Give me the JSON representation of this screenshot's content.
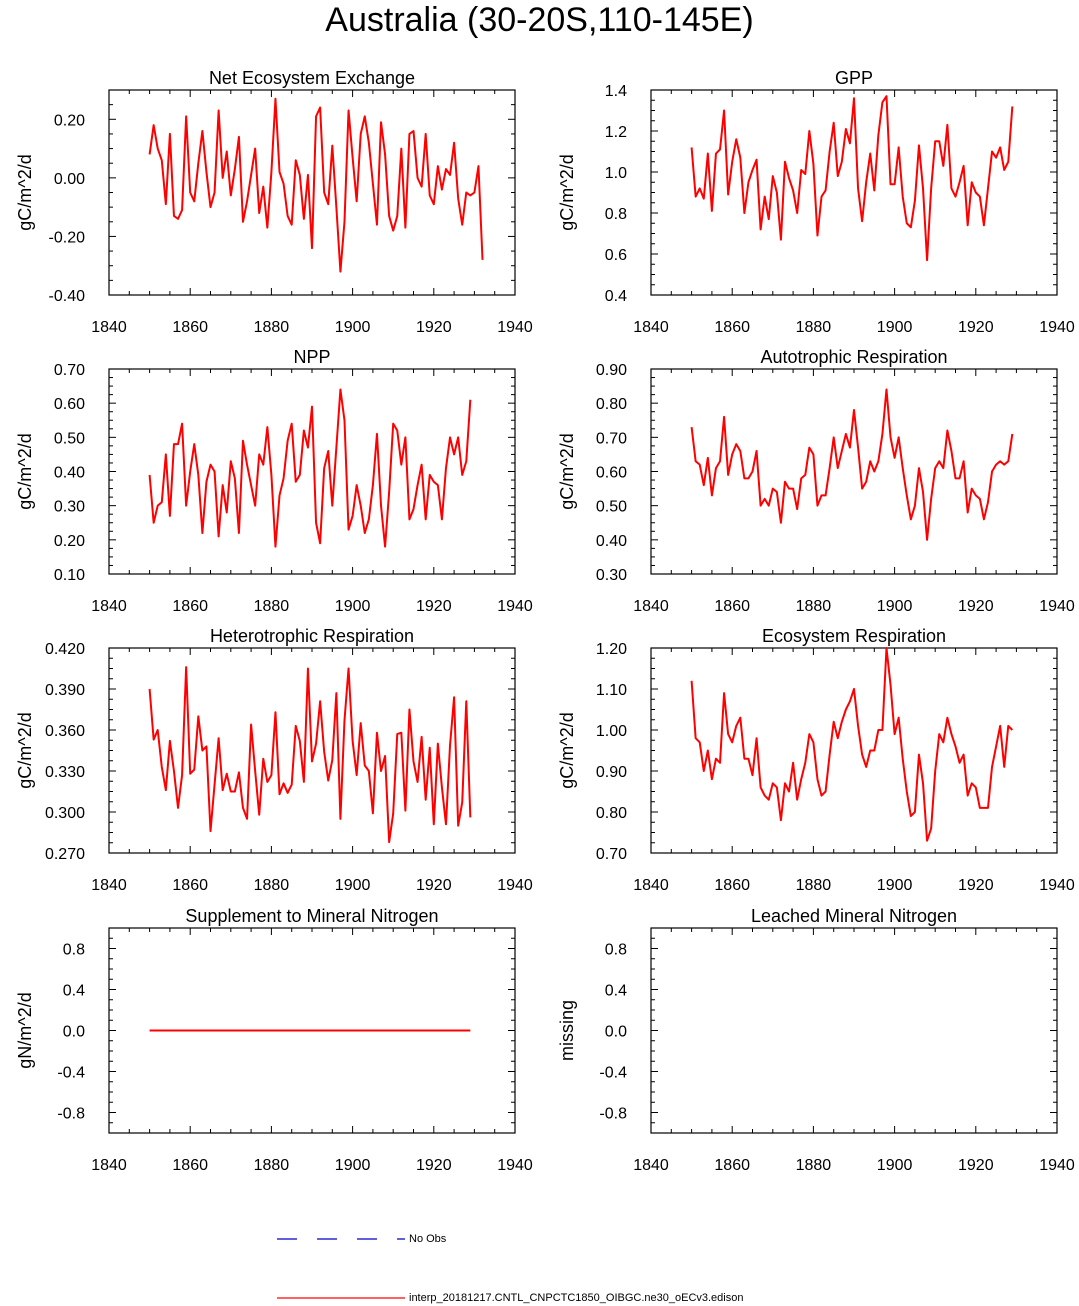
{
  "page_title": "Australia (30-20S,110-145E)",
  "colors": {
    "model_line": "#ff0000",
    "obs_line": "#0000cc",
    "axis": "#000000"
  },
  "legend": {
    "obs_label": "No Obs",
    "model_label": "interp_20181217.CNTL_CNPCTC1850_OIBGC.ne30_oECv3.edison"
  },
  "chart_data": [
    {
      "type": "line",
      "title": "Net Ecosystem Exchange",
      "ylabel": "gC/m^2/d",
      "xlabel": "",
      "xlim": [
        1840,
        1940
      ],
      "ylim": [
        -0.4,
        0.3
      ],
      "xticks": [
        1840,
        1860,
        1880,
        1900,
        1920,
        1940
      ],
      "yticks": [
        -0.4,
        -0.2,
        0.0,
        0.2
      ],
      "ytick_labels": [
        "-0.40",
        "-0.20",
        "0.00",
        "0.20"
      ],
      "x_start": 1850,
      "series": [
        {
          "name": "interp_20181217.CNTL_CNPCTC1850_OIBGC.ne30_oECv3.edison",
          "values": [
            0.08,
            0.18,
            0.1,
            0.06,
            -0.09,
            0.15,
            -0.13,
            -0.14,
            -0.11,
            0.21,
            -0.05,
            -0.08,
            0.05,
            0.16,
            0.02,
            -0.1,
            -0.05,
            0.23,
            0.0,
            0.09,
            -0.06,
            0.03,
            0.14,
            -0.15,
            -0.08,
            0.01,
            0.1,
            -0.12,
            -0.03,
            -0.17,
            0.02,
            0.27,
            0.02,
            -0.02,
            -0.13,
            -0.16,
            0.06,
            0.01,
            -0.14,
            0.01,
            -0.24,
            0.21,
            0.24,
            -0.05,
            -0.09,
            0.11,
            -0.1,
            -0.32,
            -0.15,
            0.23,
            0.07,
            -0.08,
            0.15,
            0.21,
            0.12,
            -0.02,
            -0.16,
            0.19,
            0.08,
            -0.13,
            -0.18,
            -0.13,
            0.1,
            -0.17,
            0.15,
            0.16,
            0.0,
            -0.03,
            0.15,
            -0.06,
            -0.09,
            0.04,
            -0.04,
            0.03,
            0.01,
            0.12,
            -0.07,
            -0.16,
            -0.05,
            -0.06,
            -0.05,
            0.04,
            -0.28
          ]
        }
      ]
    },
    {
      "type": "line",
      "title": "GPP",
      "ylabel": "gC/m^2/d",
      "xlabel": "",
      "xlim": [
        1840,
        1940
      ],
      "ylim": [
        0.4,
        1.4
      ],
      "xticks": [
        1840,
        1860,
        1880,
        1900,
        1920,
        1940
      ],
      "yticks": [
        0.4,
        0.6,
        0.8,
        1.0,
        1.2,
        1.4
      ],
      "ytick_labels": [
        "0.4",
        "0.6",
        "0.8",
        "1.0",
        "1.2",
        "1.4"
      ],
      "x_start": 1850,
      "series": [
        {
          "name": "interp_20181217.CNTL_CNPCTC1850_OIBGC.ne30_oECv3.edison",
          "values": [
            1.12,
            0.88,
            0.92,
            0.87,
            1.09,
            0.81,
            1.09,
            1.11,
            1.3,
            0.89,
            1.05,
            1.16,
            1.07,
            0.8,
            0.95,
            1.01,
            1.06,
            0.72,
            0.88,
            0.77,
            0.98,
            0.9,
            0.67,
            1.05,
            0.97,
            0.91,
            0.8,
            1.01,
            0.99,
            1.2,
            1.04,
            0.69,
            0.88,
            0.91,
            1.1,
            1.24,
            0.98,
            1.05,
            1.21,
            1.14,
            1.36,
            0.92,
            0.76,
            0.95,
            1.09,
            0.91,
            1.18,
            1.34,
            1.37,
            0.94,
            0.94,
            1.12,
            0.88,
            0.75,
            0.73,
            0.86,
            1.13,
            0.92,
            0.57,
            0.92,
            1.15,
            1.15,
            1.03,
            1.23,
            0.92,
            0.88,
            0.95,
            1.03,
            0.74,
            0.95,
            0.9,
            0.88,
            0.74,
            0.92,
            1.1,
            1.07,
            1.12,
            1.01,
            1.05,
            1.32
          ]
        }
      ]
    },
    {
      "type": "line",
      "title": "NPP",
      "ylabel": "gC/m^2/d",
      "xlabel": "",
      "xlim": [
        1840,
        1940
      ],
      "ylim": [
        0.1,
        0.7
      ],
      "xticks": [
        1840,
        1860,
        1880,
        1900,
        1920,
        1940
      ],
      "yticks": [
        0.1,
        0.2,
        0.3,
        0.4,
        0.5,
        0.6,
        0.7
      ],
      "ytick_labels": [
        "0.10",
        "0.20",
        "0.30",
        "0.40",
        "0.50",
        "0.60",
        "0.70"
      ],
      "x_start": 1850,
      "series": [
        {
          "name": "interp_20181217.CNTL_CNPCTC1850_OIBGC.ne30_oECv3.edison",
          "values": [
            0.39,
            0.25,
            0.3,
            0.31,
            0.45,
            0.27,
            0.48,
            0.48,
            0.54,
            0.3,
            0.4,
            0.48,
            0.39,
            0.22,
            0.37,
            0.42,
            0.4,
            0.21,
            0.36,
            0.28,
            0.43,
            0.38,
            0.22,
            0.49,
            0.42,
            0.36,
            0.3,
            0.45,
            0.42,
            0.53,
            0.39,
            0.18,
            0.33,
            0.38,
            0.49,
            0.54,
            0.37,
            0.39,
            0.52,
            0.47,
            0.59,
            0.25,
            0.19,
            0.41,
            0.46,
            0.3,
            0.47,
            0.64,
            0.55,
            0.23,
            0.27,
            0.36,
            0.3,
            0.22,
            0.26,
            0.36,
            0.51,
            0.3,
            0.18,
            0.34,
            0.54,
            0.52,
            0.42,
            0.5,
            0.26,
            0.29,
            0.36,
            0.42,
            0.26,
            0.39,
            0.37,
            0.36,
            0.26,
            0.41,
            0.5,
            0.45,
            0.5,
            0.39,
            0.43,
            0.61
          ]
        }
      ]
    },
    {
      "type": "line",
      "title": "Autotrophic Respiration",
      "ylabel": "gC/m^2/d",
      "xlabel": "",
      "xlim": [
        1840,
        1940
      ],
      "ylim": [
        0.3,
        0.9
      ],
      "xticks": [
        1840,
        1860,
        1880,
        1900,
        1920,
        1940
      ],
      "yticks": [
        0.3,
        0.4,
        0.5,
        0.6,
        0.7,
        0.8,
        0.9
      ],
      "ytick_labels": [
        "0.30",
        "0.40",
        "0.50",
        "0.60",
        "0.70",
        "0.80",
        "0.90"
      ],
      "x_start": 1850,
      "series": [
        {
          "name": "interp_20181217.CNTL_CNPCTC1850_OIBGC.ne30_oECv3.edison",
          "values": [
            0.73,
            0.63,
            0.62,
            0.56,
            0.64,
            0.53,
            0.61,
            0.63,
            0.76,
            0.59,
            0.65,
            0.68,
            0.66,
            0.58,
            0.58,
            0.6,
            0.66,
            0.5,
            0.52,
            0.5,
            0.55,
            0.54,
            0.45,
            0.57,
            0.55,
            0.55,
            0.49,
            0.58,
            0.59,
            0.67,
            0.65,
            0.5,
            0.53,
            0.53,
            0.61,
            0.7,
            0.61,
            0.66,
            0.71,
            0.67,
            0.78,
            0.67,
            0.55,
            0.57,
            0.63,
            0.6,
            0.63,
            0.71,
            0.84,
            0.7,
            0.64,
            0.7,
            0.61,
            0.53,
            0.46,
            0.5,
            0.61,
            0.54,
            0.4,
            0.52,
            0.61,
            0.63,
            0.61,
            0.72,
            0.66,
            0.58,
            0.58,
            0.63,
            0.48,
            0.55,
            0.53,
            0.52,
            0.46,
            0.51,
            0.6,
            0.62,
            0.63,
            0.62,
            0.63,
            0.71
          ]
        }
      ]
    },
    {
      "type": "line",
      "title": "Heterotrophic Respiration",
      "ylabel": "gC/m^2/d",
      "xlabel": "",
      "xlim": [
        1840,
        1940
      ],
      "ylim": [
        0.27,
        0.42
      ],
      "xticks": [
        1840,
        1860,
        1880,
        1900,
        1920,
        1940
      ],
      "yticks": [
        0.27,
        0.3,
        0.33,
        0.36,
        0.39,
        0.42
      ],
      "ytick_labels": [
        "0.270",
        "0.300",
        "0.330",
        "0.360",
        "0.390",
        "0.420"
      ],
      "x_start": 1850,
      "series": [
        {
          "name": "interp_20181217.CNTL_CNPCTC1850_OIBGC.ne30_oECv3.edison",
          "values": [
            0.39,
            0.353,
            0.36,
            0.333,
            0.316,
            0.352,
            0.33,
            0.303,
            0.327,
            0.406,
            0.328,
            0.331,
            0.37,
            0.345,
            0.348,
            0.286,
            0.32,
            0.354,
            0.316,
            0.328,
            0.315,
            0.315,
            0.329,
            0.303,
            0.295,
            0.364,
            0.33,
            0.298,
            0.339,
            0.322,
            0.327,
            0.373,
            0.313,
            0.321,
            0.314,
            0.32,
            0.363,
            0.352,
            0.322,
            0.405,
            0.337,
            0.35,
            0.381,
            0.344,
            0.323,
            0.338,
            0.387,
            0.295,
            0.367,
            0.405,
            0.352,
            0.327,
            0.365,
            0.334,
            0.33,
            0.299,
            0.358,
            0.33,
            0.341,
            0.278,
            0.299,
            0.357,
            0.358,
            0.301,
            0.375,
            0.337,
            0.322,
            0.355,
            0.309,
            0.347,
            0.291,
            0.35,
            0.318,
            0.291,
            0.349,
            0.384,
            0.29,
            0.307,
            0.381,
            0.296
          ]
        }
      ]
    },
    {
      "type": "line",
      "title": "Ecosystem Respiration",
      "ylabel": "gC/m^2/d",
      "xlabel": "",
      "xlim": [
        1840,
        1940
      ],
      "ylim": [
        0.7,
        1.2
      ],
      "xticks": [
        1840,
        1860,
        1880,
        1900,
        1920,
        1940
      ],
      "yticks": [
        0.7,
        0.8,
        0.9,
        1.0,
        1.1,
        1.2
      ],
      "ytick_labels": [
        "0.70",
        "0.80",
        "0.90",
        "1.00",
        "1.10",
        "1.20"
      ],
      "x_start": 1850,
      "series": [
        {
          "name": "interp_20181217.CNTL_CNPCTC1850_OIBGC.ne30_oECv3.edison",
          "values": [
            1.12,
            0.98,
            0.97,
            0.9,
            0.95,
            0.88,
            0.93,
            0.92,
            1.09,
            0.99,
            0.97,
            1.01,
            1.03,
            0.93,
            0.93,
            0.89,
            0.98,
            0.86,
            0.84,
            0.83,
            0.87,
            0.86,
            0.78,
            0.87,
            0.85,
            0.92,
            0.83,
            0.88,
            0.92,
            0.99,
            0.97,
            0.88,
            0.84,
            0.85,
            0.94,
            1.02,
            0.98,
            1.02,
            1.05,
            1.07,
            1.1,
            1.01,
            0.94,
            0.91,
            0.95,
            0.95,
            1.0,
            1.0,
            1.2,
            1.11,
            0.99,
            1.03,
            0.93,
            0.85,
            0.79,
            0.8,
            0.94,
            0.87,
            0.73,
            0.76,
            0.9,
            0.99,
            0.97,
            1.03,
            0.99,
            0.96,
            0.92,
            0.94,
            0.84,
            0.87,
            0.86,
            0.81,
            0.81,
            0.81,
            0.91,
            0.96,
            1.01,
            0.91,
            1.01,
            1.0
          ]
        }
      ]
    },
    {
      "type": "line",
      "title": "Supplement to Mineral Nitrogen",
      "ylabel": "gN/m^2/d",
      "xlabel": "",
      "xlim": [
        1840,
        1940
      ],
      "ylim": [
        -1.0,
        1.0
      ],
      "xticks": [
        1840,
        1860,
        1880,
        1900,
        1920,
        1940
      ],
      "yticks": [
        -0.8,
        -0.4,
        0.0,
        0.4,
        0.8
      ],
      "ytick_labels": [
        "-0.8",
        "-0.4",
        "0.0",
        "0.4",
        "0.8"
      ],
      "x_start": 1850,
      "series": [
        {
          "name": "interp_20181217.CNTL_CNPCTC1850_OIBGC.ne30_oECv3.edison",
          "values": [
            0,
            0,
            0,
            0,
            0,
            0,
            0,
            0,
            0,
            0,
            0,
            0,
            0,
            0,
            0,
            0,
            0,
            0,
            0,
            0,
            0,
            0,
            0,
            0,
            0,
            0,
            0,
            0,
            0,
            0,
            0,
            0,
            0,
            0,
            0,
            0,
            0,
            0,
            0,
            0,
            0,
            0,
            0,
            0,
            0,
            0,
            0,
            0,
            0,
            0,
            0,
            0,
            0,
            0,
            0,
            0,
            0,
            0,
            0,
            0,
            0,
            0,
            0,
            0,
            0,
            0,
            0,
            0,
            0,
            0,
            0,
            0,
            0,
            0,
            0,
            0,
            0,
            0,
            0,
            0
          ]
        }
      ]
    },
    {
      "type": "line",
      "title": "Leached Mineral Nitrogen",
      "ylabel": "missing",
      "xlabel": "",
      "xlim": [
        1840,
        1940
      ],
      "ylim": [
        -1.0,
        1.0
      ],
      "xticks": [
        1840,
        1860,
        1880,
        1900,
        1920,
        1940
      ],
      "yticks": [
        -0.8,
        -0.4,
        0.0,
        0.4,
        0.8
      ],
      "ytick_labels": [
        "-0.8",
        "-0.4",
        "0.0",
        "0.4",
        "0.8"
      ],
      "x_start": 1850,
      "series": []
    }
  ]
}
